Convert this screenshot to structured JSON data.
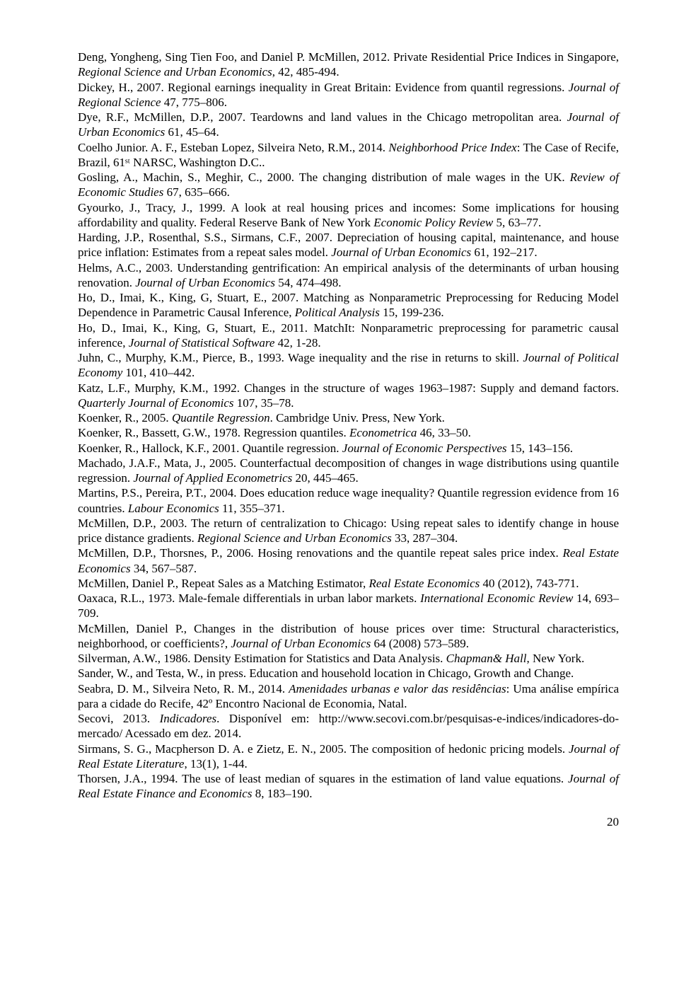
{
  "references": [
    {
      "pre": "Deng, Yongheng, Sing Tien Foo, and Daniel P. McMillen, 2012. Private Residential Price Indices in Singapore, ",
      "ital": "Regional Science and Urban Economics",
      "post": ", 42, 485-494."
    },
    {
      "pre": "Dickey, H., 2007. Regional earnings inequality in Great Britain: Evidence from quantil regressions. ",
      "ital": "Journal of Regional Science",
      "post": " 47, 775–806."
    },
    {
      "pre": "Dye, R.F., McMillen, D.P., 2007. Teardowns and land values in the Chicago metropolitan area. ",
      "ital": "Journal of Urban Economics",
      "post": " 61, 45–64."
    },
    {
      "pre": "Coelho Junior. A. F., Esteban Lopez, Silveira Neto, R.M., 2014. ",
      "ital": "Neighborhood Price Index",
      "post": ": The Case of Recife, Brazil, 61ˢᵗ NARSC, Washington D.C.."
    },
    {
      "pre": "Gosling, A., Machin, S., Meghir, C., 2000. The changing distribution of male wages in the UK. ",
      "ital": "Review of Economic Studies",
      "post": " 67, 635–666."
    },
    {
      "pre": "Gyourko, J., Tracy, J., 1999. A look at real housing prices and incomes: Some implications for housing affordability and quality. Federal Reserve Bank of New York ",
      "ital": "Economic Policy Review",
      "post": " 5, 63–77."
    },
    {
      "pre": "Harding, J.P., Rosenthal, S.S., Sirmans, C.F., 2007. Depreciation of housing capital, maintenance, and house price inflation: Estimates from a repeat sales model. ",
      "ital": "Journal of Urban Economics",
      "post": " 61, 192–217."
    },
    {
      "pre": "Helms, A.C., 2003. Understanding gentrification: An empirical analysis of the determinants of urban housing renovation. ",
      "ital": "Journal of Urban Economics",
      "post": " 54, 474–498."
    },
    {
      "pre": "Ho, D., Imai, K., King, G, Stuart, E., 2007. Matching as Nonparametric Preprocessing for Reducing Model Dependence in Parametric Causal Inference, ",
      "ital": "Political Analysis",
      "post": " 15, 199-236."
    },
    {
      "pre": "Ho, D., Imai, K., King, G, Stuart, E., 2011. MatchIt: Nonparametric preprocessing for parametric causal inference, ",
      "ital": "Journal of Statistical Software",
      "post": "  42, 1-28."
    },
    {
      "pre": "Juhn, C., Murphy, K.M., Pierce, B., 1993. Wage inequality and the rise in returns to skill. ",
      "ital": "Journal of Political Economy",
      "post": " 101, 410–442."
    },
    {
      "pre": "Katz, L.F., Murphy, K.M., 1992. Changes in the structure of wages 1963–1987: Supply and demand factors. ",
      "ital": "Quarterly Journal of Economics",
      "post": " 107, 35–78."
    },
    {
      "pre": "Koenker, R., 2005. ",
      "ital": "Quantile Regression",
      "post": ". Cambridge Univ. Press, New York."
    },
    {
      "pre": "Koenker, R., Bassett, G.W., 1978. Regression quantiles. ",
      "ital": "Econometrica",
      "post": " 46, 33–50."
    },
    {
      "pre": "Koenker, R., Hallock, K.F., 2001. Quantile regression. ",
      "ital": "Journal of Economic Perspectives",
      "post": " 15, 143–156."
    },
    {
      "pre": "Machado, J.A.F., Mata, J., 2005. Counterfactual decomposition of changes in wage distributions using quantile regression. ",
      "ital": "Journal of Applied Econometrics",
      "post": " 20, 445–465."
    },
    {
      "pre": "Martins, P.S., Pereira, P.T., 2004. Does education reduce wage inequality? Quantile regression evidence from 16 countries. ",
      "ital": "Labour Economics",
      "post": " 11, 355–371."
    },
    {
      "pre": "McMillen, D.P., 2003. The return of centralization to Chicago: Using repeat sales to identify change in house price distance gradients. ",
      "ital": "Regional Science and Urban Economics",
      "post": " 33, 287–304."
    },
    {
      "pre": "McMillen, D.P., Thorsnes, P., 2006. Hosing renovations and the quantile repeat sales price index. ",
      "ital": "Real Estate Economics",
      "post": " 34, 567–587."
    },
    {
      "pre": "McMillen, Daniel P., Repeat Sales as a Matching Estimator, ",
      "ital": "Real Estate Economics",
      "post": "  40 (2012), 743-771."
    },
    {
      "pre": "Oaxaca, R.L., 1973. Male-female differentials in urban labor markets. ",
      "ital": "International Economic Review",
      "post": " 14, 693–709."
    },
    {
      "pre": "McMillen, Daniel P., Changes in the distribution of house prices over time: Structural characteristics, neighborhood, or coefficients?, ",
      "ital": "Journal of Urban Economics",
      "post": " 64 (2008) 573–589."
    },
    {
      "pre": "Silverman, A.W., 1986. Density Estimation for Statistics and Data Analysis. ",
      "ital": "Chapman& Hall",
      "post": ", New York."
    },
    {
      "pre": "Sander, W., and Testa, W., in press. Education and household location in Chicago, Growth and Change.",
      "ital": "",
      "post": ""
    },
    {
      "pre": "Seabra, D. M., Silveira Neto, R. M., 2014. ",
      "ital": "Amenidades urbanas e valor das residências",
      "post": ": Uma análise empírica para a cidade do Recife, 42º Encontro Nacional de Economia, Natal."
    },
    {
      "pre": "Secovi, 2013. ",
      "ital": "Indicadores",
      "post": ". Disponível em: http://www.secovi.com.br/pesquisas-e-indices/indicadores-do-mercado/ Acessado em dez. 2014."
    },
    {
      "pre": "Sirmans, S. G., Macpherson D. A. e Zietz, E. N., 2005. The composition of hedonic pricing models. ",
      "ital": "Journal of Real Estate Literature",
      "post": ", 13(1), 1-44."
    },
    {
      "pre": "Thorsen, J.A., 1994. The use of least median of squares in the estimation of land value equations. ",
      "ital": "Journal of Real Estate Finance and Economics",
      "post": " 8, 183–190."
    }
  ],
  "page_number": "20"
}
